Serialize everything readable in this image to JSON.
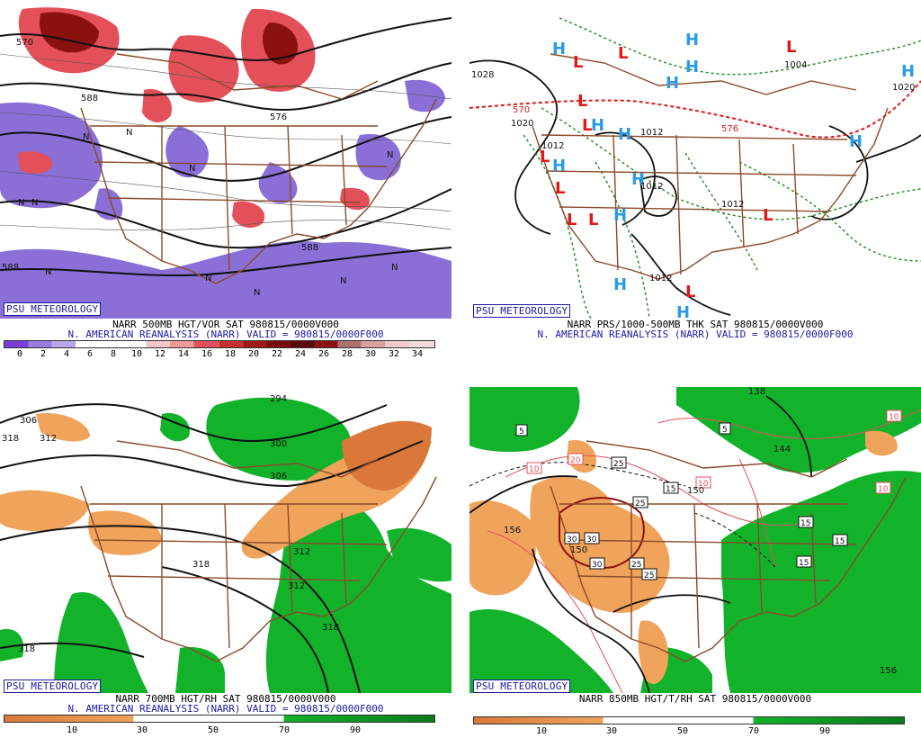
{
  "badge": "PSU METEOROLOGY",
  "panels": [
    {
      "id": "p1",
      "line1": "NARR 500MB HGT/VOR SAT 980815/0000V000",
      "line2": "N. AMERICAN REANALYSIS (NARR) VALID = 980815/0000F000",
      "ticks": [
        "0",
        "2",
        "4",
        "6",
        "8",
        "10",
        "12",
        "14",
        "16",
        "18",
        "20",
        "22",
        "24",
        "26",
        "28",
        "30",
        "32",
        "34"
      ],
      "contour_labels": [
        "570",
        "588",
        "576",
        "588",
        "588"
      ],
      "markers": [
        "N",
        "N",
        "N",
        "N",
        "N",
        "N",
        "N",
        "N",
        "N",
        "N",
        "N"
      ]
    },
    {
      "id": "p2",
      "line1": "NARR PRS/1000-500MB THK SAT 980815/0000V000",
      "line2": "N. AMERICAN REANALYSIS (NARR) VALID = 980815/0000F000",
      "contour_labels": [
        "1028",
        "1020",
        "1012",
        "1012",
        "1012",
        "1012",
        "1012",
        "1004",
        "1020",
        "570",
        "576"
      ],
      "high_label": "H",
      "low_label": "L"
    },
    {
      "id": "p3",
      "line1": "NARR 700MB HGT/RH SAT 980815/0000V000",
      "line2": "N. AMERICAN REANALYSIS (NARR) VALID = 980815/0000F000",
      "ticks": [
        "10",
        "30",
        "50",
        "70",
        "90"
      ],
      "contour_labels": [
        "294",
        "306",
        "318",
        "312",
        "300",
        "306",
        "312",
        "318",
        "312",
        "318",
        "318"
      ]
    },
    {
      "id": "p4",
      "line1": "NARR 850MB HGT/T/RH SAT 980815/0000V000",
      "ticks": [
        "10",
        "30",
        "50",
        "70",
        "90"
      ],
      "contour_labels": [
        "138",
        "156",
        "144",
        "150",
        "150",
        "156"
      ],
      "boxed_labels": [
        "5",
        "5",
        "25",
        "15",
        "25",
        "30",
        "30",
        "30",
        "25",
        "25",
        "15",
        "15",
        "15"
      ],
      "red_boxed_labels": [
        "10",
        "20",
        "10",
        "10",
        "10"
      ]
    }
  ],
  "colors": {
    "vor_purple": "#8a6fd6",
    "vor_red": "#e3505a",
    "vor_dark": "#8b1010",
    "rh_green": "#12b32a",
    "rh_dark_green": "#0a7a1a",
    "rh_orange": "#f0a35a",
    "rh_dark_orange": "#d9783a",
    "map_brown": "#8b4a2a",
    "high_blue": "#2a9be8",
    "low_red": "#e01818"
  }
}
